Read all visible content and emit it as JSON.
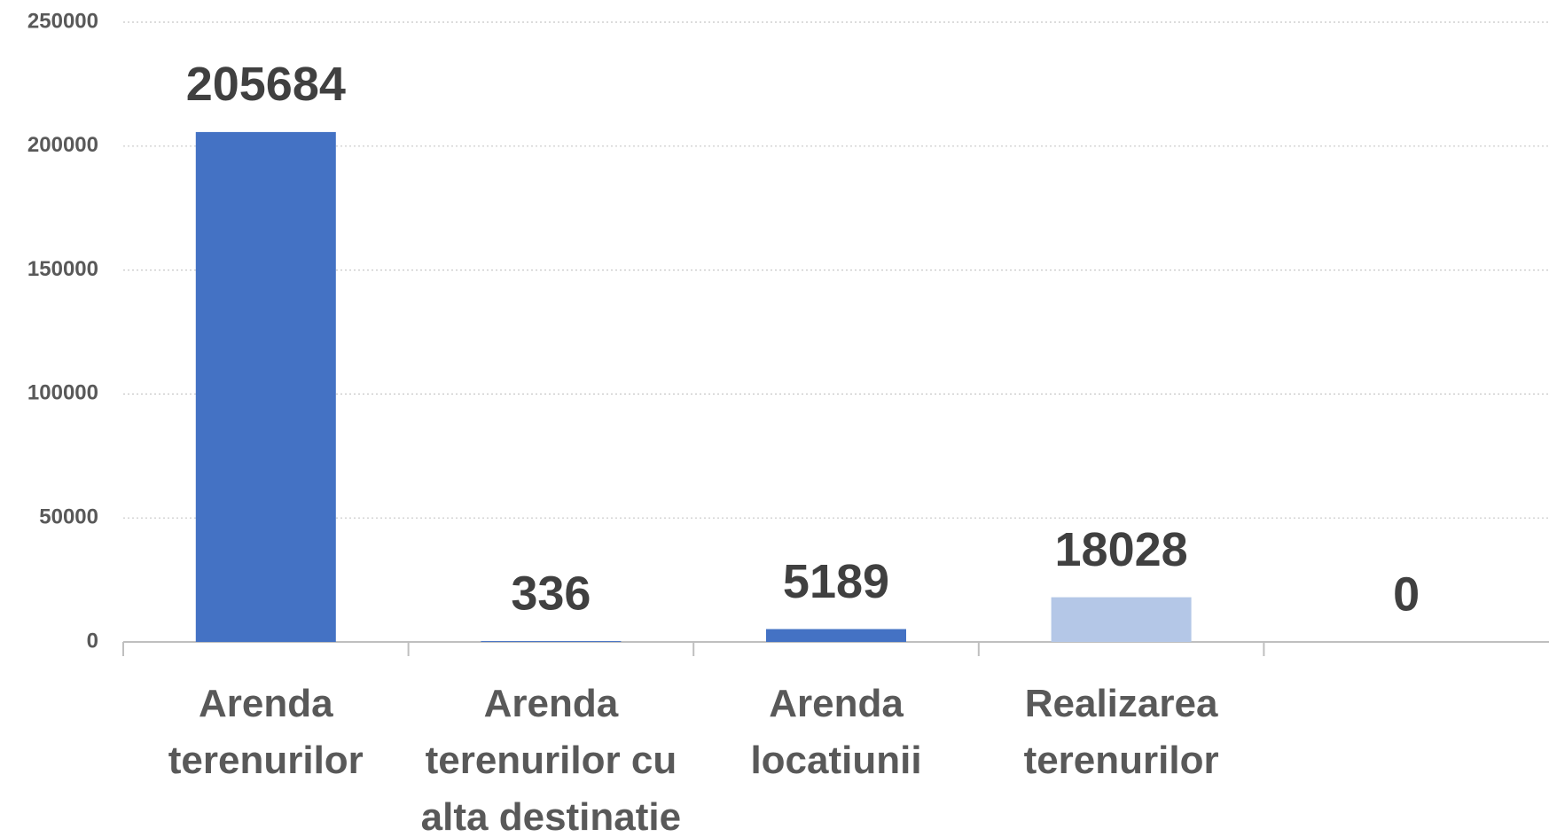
{
  "chart_data": {
    "type": "bar",
    "categories": [
      "Arenda terenurilor",
      "Arenda terenurilor cu alta destinatie",
      "Arenda locatiunii",
      "Realizarea terenurilor",
      null
    ],
    "values": [
      205684,
      336,
      5189,
      18028,
      0
    ],
    "colors": [
      "#4472c4",
      "#4472c4",
      "#4472c4",
      "#b4c7e7",
      "#4472c4"
    ],
    "ylim": [
      0,
      250000
    ],
    "yticks": [
      0,
      50000,
      100000,
      150000,
      200000,
      250000
    ],
    "grid": true
  }
}
